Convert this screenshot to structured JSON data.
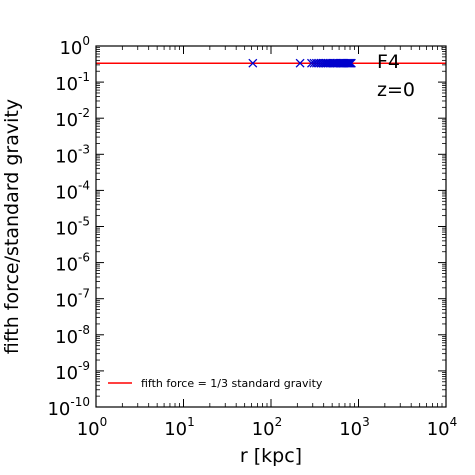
{
  "chart_data": {
    "type": "scatter",
    "title": "",
    "xlabel": "r [kpc]",
    "ylabel": "fifth force/standard gravity",
    "x_scale": "log",
    "y_scale": "log",
    "xlim": [
      1,
      10000
    ],
    "ylim": [
      1e-10,
      1
    ],
    "x_ticks": [
      {
        "value": 1,
        "base": "10",
        "exp": "0"
      },
      {
        "value": 10,
        "base": "10",
        "exp": "1"
      },
      {
        "value": 100,
        "base": "10",
        "exp": "2"
      },
      {
        "value": 1000,
        "base": "10",
        "exp": "3"
      },
      {
        "value": 10000,
        "base": "10",
        "exp": "4"
      }
    ],
    "y_ticks": [
      {
        "value": 1,
        "base": "10",
        "exp": "0"
      },
      {
        "value": 0.1,
        "base": "10",
        "exp": "-1"
      },
      {
        "value": 0.01,
        "base": "10",
        "exp": "-2"
      },
      {
        "value": 0.001,
        "base": "10",
        "exp": "-3"
      },
      {
        "value": 0.0001,
        "base": "10",
        "exp": "-4"
      },
      {
        "value": 1e-05,
        "base": "10",
        "exp": "-5"
      },
      {
        "value": 1e-06,
        "base": "10",
        "exp": "-6"
      },
      {
        "value": 1e-07,
        "base": "10",
        "exp": "-7"
      },
      {
        "value": 1e-08,
        "base": "10",
        "exp": "-8"
      },
      {
        "value": 1e-09,
        "base": "10",
        "exp": "-9"
      },
      {
        "value": 1e-10,
        "base": "10",
        "exp": "-10"
      }
    ],
    "grid": false,
    "legend_position": "bottom-left",
    "annotations": [
      "F4",
      "z=0"
    ],
    "lines": [
      {
        "name": "fifth force = 1/3 standard gravity",
        "y": 0.3333,
        "color": "#ff0000"
      }
    ],
    "scatter": {
      "marker": "x",
      "color": "#0000cc",
      "x": [
        62,
        215,
        290,
        310,
        330,
        350,
        370,
        390,
        410,
        430,
        450,
        470,
        490,
        510,
        530,
        550,
        570,
        590,
        610,
        630,
        650,
        670,
        690,
        710,
        730,
        750,
        770,
        790,
        810,
        830
      ],
      "y": [
        0.3333,
        0.3333,
        0.3333,
        0.3333,
        0.3333,
        0.3333,
        0.3333,
        0.3333,
        0.3333,
        0.3333,
        0.3333,
        0.3333,
        0.3333,
        0.3333,
        0.3333,
        0.3333,
        0.3333,
        0.3333,
        0.3333,
        0.3333,
        0.3333,
        0.3333,
        0.3333,
        0.3333,
        0.3333,
        0.3333,
        0.3333,
        0.3333,
        0.3333,
        0.3333
      ]
    }
  }
}
